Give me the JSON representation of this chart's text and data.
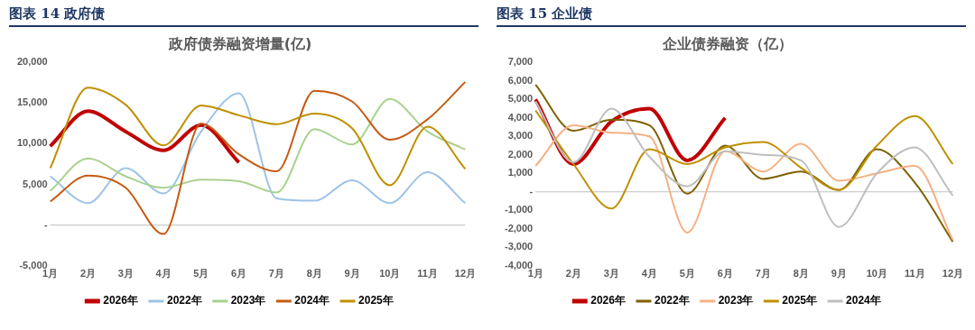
{
  "chart_data": [
    {
      "type": "line",
      "title": "图表 14 政府债",
      "subtitle": "政府债券融资增量(亿)",
      "categories": [
        "1月",
        "2月",
        "3月",
        "4月",
        "5月",
        "6月",
        "7月",
        "8月",
        "9月",
        "10月",
        "11月",
        "12月"
      ],
      "series": [
        {
          "name": "2026年",
          "color": "#c00000",
          "values": [
            9700,
            14000,
            11500,
            9200,
            12300,
            7700,
            null,
            null,
            null,
            null,
            null,
            null
          ]
        },
        {
          "name": "2022年",
          "color": "#9dc3e6",
          "values": [
            6000,
            2700,
            7000,
            3900,
            11500,
            16200,
            3300,
            3000,
            5500,
            2700,
            6500,
            2700
          ]
        },
        {
          "name": "2023年",
          "color": "#a9d18e",
          "values": [
            4200,
            8200,
            6000,
            4600,
            5600,
            5400,
            4000,
            11800,
            9900,
            15500,
            11500,
            9300
          ]
        },
        {
          "name": "2024年",
          "color": "#c55a11",
          "values": [
            2900,
            6100,
            4600,
            -1100,
            12500,
            8700,
            6600,
            16500,
            15200,
            10500,
            13000,
            17600
          ]
        },
        {
          "name": "2025年",
          "color": "#bf9000",
          "values": [
            7000,
            16900,
            14800,
            9800,
            14700,
            13500,
            12400,
            13700,
            11900,
            4900,
            12100,
            6900
          ]
        }
      ],
      "ylim": [
        -5000,
        20000
      ],
      "yticks": [
        {
          "value": -5000,
          "label": "-5,000"
        },
        {
          "value": 0,
          "label": "-"
        },
        {
          "value": 5000,
          "label": "5,000"
        },
        {
          "value": 10000,
          "label": "10,000"
        },
        {
          "value": 15000,
          "label": "15,000"
        },
        {
          "value": 20000,
          "label": "20,000"
        }
      ],
      "ref_lines": [
        {
          "axis": "y",
          "value": 0,
          "color": "#bfbfbf"
        }
      ],
      "legend": "bottom",
      "marker": "none"
    },
    {
      "type": "line",
      "title": "图表 15 企业债",
      "subtitle": "企业债券融资（亿）",
      "categories": [
        "1月",
        "2月",
        "3月",
        "4月",
        "5月",
        "6月",
        "7月",
        "8月",
        "9月",
        "10月",
        "11月",
        "12月"
      ],
      "series": [
        {
          "name": "2026年",
          "color": "#c00000",
          "values": [
            5000,
            1500,
            3800,
            4500,
            1700,
            4000,
            null,
            null,
            null,
            null,
            null,
            null
          ]
        },
        {
          "name": "2022年",
          "color": "#7f6000",
          "values": [
            5800,
            3300,
            3900,
            3600,
            -100,
            2500,
            700,
            1100,
            100,
            2300,
            500,
            -2700
          ]
        },
        {
          "name": "2023年",
          "color": "#f4b183",
          "values": [
            1400,
            3600,
            3200,
            3000,
            -2200,
            2200,
            1100,
            2600,
            600,
            1000,
            1400,
            -2600
          ]
        },
        {
          "name": "2025年",
          "color": "#bf9000",
          "values": [
            4400,
            1500,
            -900,
            2300,
            1500,
            2400,
            2700,
            1300,
            100,
            2500,
            4100,
            1500
          ]
        },
        {
          "name": "2024年",
          "color": "#bfbfbf",
          "values": [
            4900,
            1600,
            4500,
            1900,
            300,
            2200,
            2000,
            1700,
            -1900,
            1000,
            2400,
            -200
          ]
        }
      ],
      "ylim": [
        -4000,
        7000
      ],
      "yticks": [
        {
          "value": -4000,
          "label": "-4,000"
        },
        {
          "value": -3000,
          "label": "-3,000"
        },
        {
          "value": -2000,
          "label": "-2,000"
        },
        {
          "value": -1000,
          "label": "-1,000"
        },
        {
          "value": 0,
          "label": "-"
        },
        {
          "value": 1000,
          "label": "1,000"
        },
        {
          "value": 2000,
          "label": "2,000"
        },
        {
          "value": 3000,
          "label": "3,000"
        },
        {
          "value": 4000,
          "label": "4,000"
        },
        {
          "value": 5000,
          "label": "5,000"
        },
        {
          "value": 6000,
          "label": "6,000"
        },
        {
          "value": 7000,
          "label": "7,000"
        }
      ],
      "ref_lines": [
        {
          "axis": "y",
          "value": 0,
          "color": "#bfbfbf"
        }
      ],
      "legend": "bottom",
      "marker": "none"
    }
  ]
}
